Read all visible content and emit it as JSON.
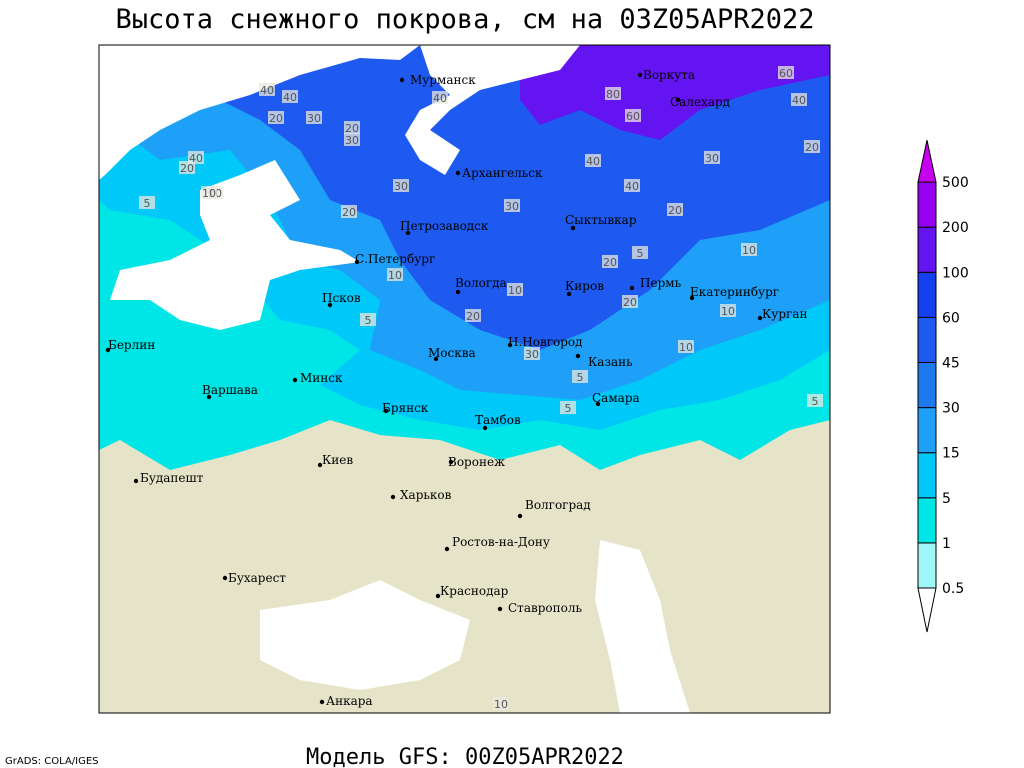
{
  "header": {
    "title": "Высота снежного покрова, см на 03Z05APR2022"
  },
  "footer": {
    "model": "Модель GFS: 00Z05APR2022",
    "credit": "GrADS: COLA/IGES"
  },
  "legend": {
    "levels": [
      0.5,
      1,
      5,
      15,
      30,
      45,
      60,
      100,
      200,
      500
    ],
    "colors": [
      "#ffffff",
      "#9ef6f6",
      "#00e6e6",
      "#00c8f8",
      "#1ea0f8",
      "#1e78f0",
      "#1e5af0",
      "#1440f0",
      "#6414f0",
      "#9600f0",
      "#c800f0"
    ]
  },
  "map": {
    "cities": [
      "Мурманск",
      "Архангельск",
      "Воркута",
      "Салехард",
      "Петрозаводск",
      "С.Петербург",
      "Сыктывкар",
      "Вологда",
      "Киров",
      "Пермь",
      "Екатеринбург",
      "Курган",
      "Псков",
      "Берлин",
      "Москва",
      "Н.Новгород",
      "Казань",
      "Минск",
      "Варшава",
      "Брянск",
      "Тамбов",
      "Самара",
      "Киев",
      "Воронеж",
      "Будапешт",
      "Харьков",
      "Волгоград",
      "Ростов-на-Дону",
      "Бухарест",
      "Краснодар",
      "Ставрополь",
      "Анкара"
    ],
    "contour_labels": [
      "40",
      "20",
      "30",
      "20",
      "30",
      "40",
      "20",
      "10",
      "5",
      "40",
      "80",
      "60",
      "40",
      "60",
      "40",
      "30",
      "40",
      "20",
      "30",
      "40",
      "30",
      "20",
      "10",
      "20",
      "10",
      "20",
      "5",
      "10",
      "10",
      "20",
      "20",
      "30",
      "10",
      "5",
      "10",
      "5",
      "5",
      "5",
      "10"
    ]
  }
}
